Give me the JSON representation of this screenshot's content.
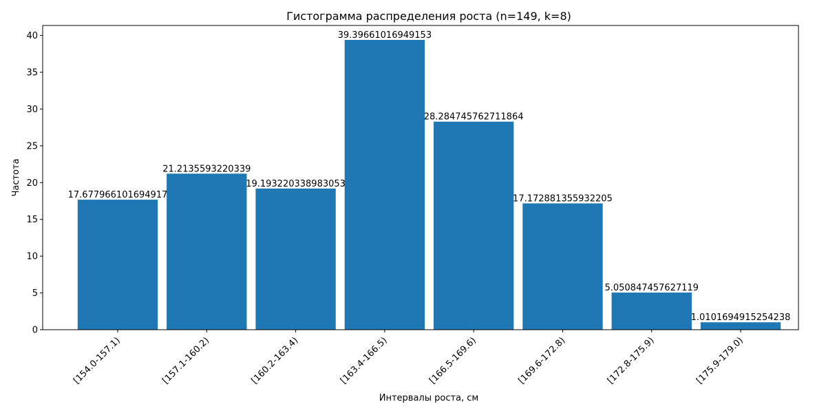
{
  "chart_data": {
    "type": "bar",
    "title": "Гистограмма распределения роста (n=149, k=8)",
    "xlabel": "Интервалы роста, см",
    "ylabel": "Частота",
    "categories": [
      "[154.0-157.1)",
      "[157.1-160.2)",
      "[160.2-163.4)",
      "[163.4-166.5)",
      "[166.5-169.6)",
      "[169.6-172.8)",
      "[172.8-175.9)",
      "[175.9-179.0)"
    ],
    "values": [
      17.677966101694917,
      21.2135593220339,
      19.193220338983053,
      39.39661016949153,
      28.284745762711864,
      17.172881355932205,
      5.050847457627119,
      1.0101694915254238
    ],
    "value_labels": [
      "17.677966101694917",
      "21.2135593220339",
      "19.193220338983053",
      "39.39661016949153",
      "28.284745762711864",
      "17.172881355932205",
      "5.050847457627119",
      "1.0101694915254238"
    ],
    "yticks": [
      0,
      5,
      10,
      15,
      20,
      25,
      30,
      35,
      40
    ],
    "ylim": [
      0,
      41.36
    ],
    "grid": false,
    "bar_color": "#1f77b4"
  }
}
